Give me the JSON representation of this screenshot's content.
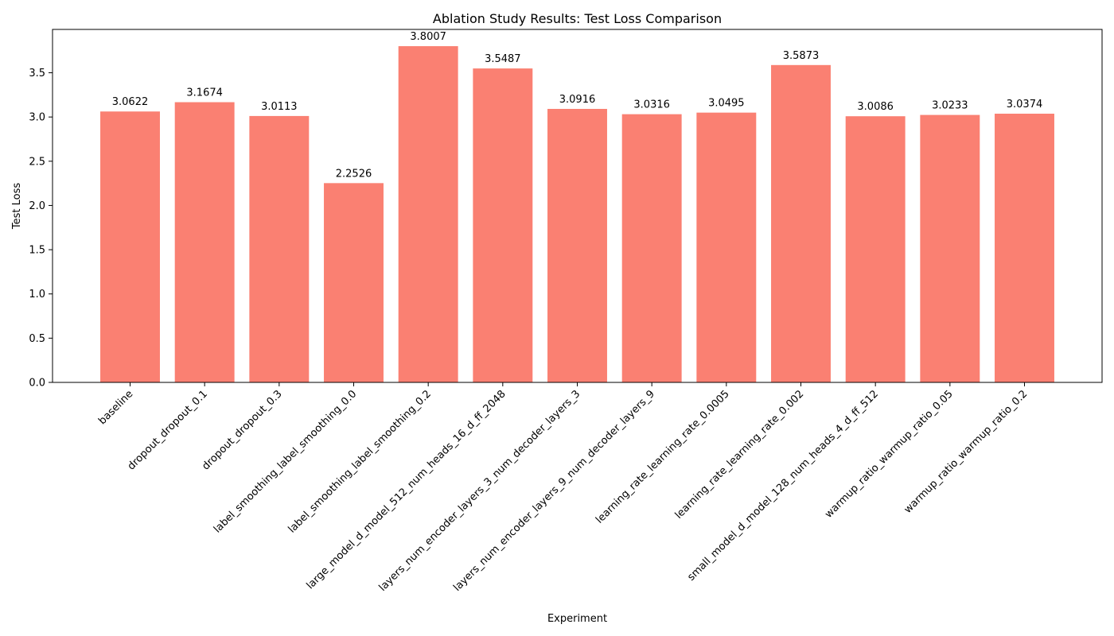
{
  "chart_data": {
    "type": "bar",
    "title": "Ablation Study Results: Test Loss Comparison",
    "xlabel": "Experiment",
    "ylabel": "Test Loss",
    "ylim": [
      0,
      3.99
    ],
    "yticks": [
      "0.0",
      "0.5",
      "1.0",
      "1.5",
      "2.0",
      "2.5",
      "3.0",
      "3.5"
    ],
    "categories": [
      "baseline",
      "dropout_dropout_0.1",
      "dropout_dropout_0.3",
      "label_smoothing_label_smoothing_0.0",
      "label_smoothing_label_smoothing_0.2",
      "large_model_d_model_512_num_heads_16_d_ff_2048",
      "layers_num_encoder_layers_3_num_decoder_layers_3",
      "layers_num_encoder_layers_9_num_decoder_layers_9",
      "learning_rate_learning_rate_0.0005",
      "learning_rate_learning_rate_0.002",
      "small_model_d_model_128_num_heads_4_d_ff_512",
      "warmup_ratio_warmup_ratio_0.05",
      "warmup_ratio_warmup_ratio_0.2"
    ],
    "values": [
      3.0622,
      3.1674,
      3.0113,
      2.2526,
      3.8007,
      3.5487,
      3.0916,
      3.0316,
      3.0495,
      3.5873,
      3.0086,
      3.0233,
      3.0374
    ],
    "data_labels": [
      "3.0622",
      "3.1674",
      "3.0113",
      "2.2526",
      "3.8007",
      "3.5487",
      "3.0916",
      "3.0316",
      "3.0495",
      "3.5873",
      "3.0086",
      "3.0233",
      "3.0374"
    ],
    "bar_color": "#fa8072",
    "grid": false,
    "legend": "none"
  }
}
